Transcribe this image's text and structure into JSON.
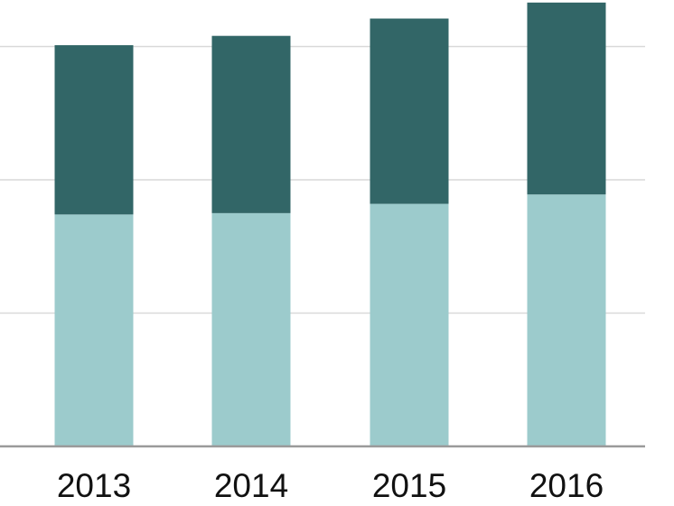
{
  "chart_data": {
    "type": "bar",
    "stacked": true,
    "categories": [
      "2013",
      "2014",
      "2015",
      "2016"
    ],
    "series": [
      {
        "values": [
          0.87,
          0.875,
          0.91,
          0.945
        ],
        "color": "#9ccbcc"
      },
      {
        "values": [
          0.635,
          0.665,
          0.695,
          0.72
        ],
        "color": "#326667"
      }
    ],
    "ylim": [
      0,
      1.65
    ],
    "gridlines": [
      0.5,
      1.0,
      1.5
    ],
    "grid": true,
    "legend": "none",
    "title": "",
    "xlabel": "",
    "ylabel": ""
  }
}
